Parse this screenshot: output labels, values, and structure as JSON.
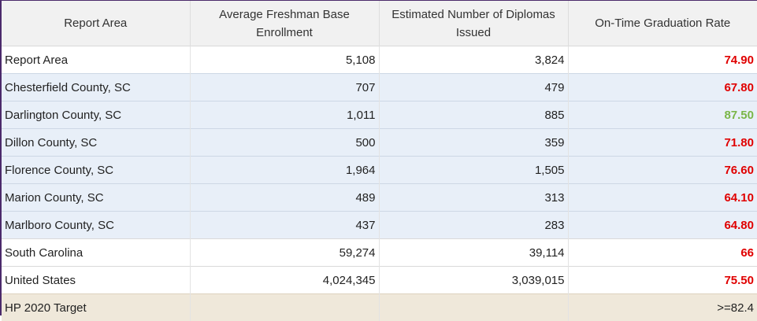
{
  "columns": [
    "Report Area",
    "Average Freshman Base Enrollment",
    "Estimated Number of Diplomas Issued",
    "On-Time Graduation Rate"
  ],
  "colors": {
    "below_target": "#e00000",
    "above_target": "#7ab648",
    "region_row_bg": "#e8eff8",
    "target_row_bg": "#efe8da"
  },
  "rows": [
    {
      "area": "Report Area",
      "enrollment": "5,108",
      "diplomas": "3,824",
      "rate": "74.90",
      "rate_status": "below"
    },
    {
      "area": "Chesterfield County, SC",
      "enrollment": "707",
      "diplomas": "479",
      "rate": "67.80",
      "rate_status": "below"
    },
    {
      "area": "Darlington County, SC",
      "enrollment": "1,011",
      "diplomas": "885",
      "rate": "87.50",
      "rate_status": "above"
    },
    {
      "area": "Dillon County, SC",
      "enrollment": "500",
      "diplomas": "359",
      "rate": "71.80",
      "rate_status": "below"
    },
    {
      "area": "Florence County, SC",
      "enrollment": "1,964",
      "diplomas": "1,505",
      "rate": "76.60",
      "rate_status": "below"
    },
    {
      "area": "Marion County, SC",
      "enrollment": "489",
      "diplomas": "313",
      "rate": "64.10",
      "rate_status": "below"
    },
    {
      "area": "Marlboro County, SC",
      "enrollment": "437",
      "diplomas": "283",
      "rate": "64.80",
      "rate_status": "below"
    },
    {
      "area": "South Carolina",
      "enrollment": "59,274",
      "diplomas": "39,114",
      "rate": "66",
      "rate_status": "below"
    },
    {
      "area": "United States",
      "enrollment": "4,024,345",
      "diplomas": "3,039,015",
      "rate": "75.50",
      "rate_status": "below"
    }
  ],
  "target": {
    "area": "HP 2020 Target",
    "enrollment": "",
    "diplomas": "",
    "rate": ">=82.4"
  }
}
